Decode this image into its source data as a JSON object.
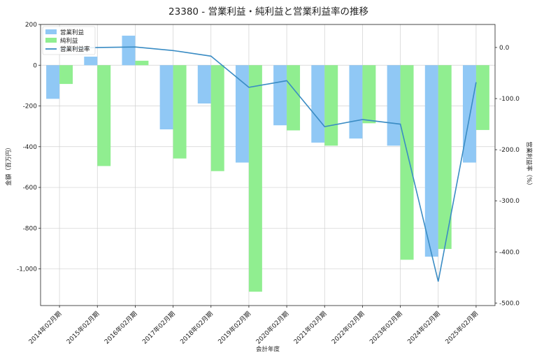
{
  "chart_data": {
    "type": "bar",
    "title": "23380 - 営業利益・純利益と営業利益率の推移",
    "xlabel": "会計年度",
    "ylabel": "金額（百万円）",
    "y2label": "営業利益率（%）",
    "categories": [
      "2014年02月期",
      "2015年02月期",
      "2016年02月期",
      "2017年02月期",
      "2018年02月期",
      "2019年02月期",
      "2020年02月期",
      "2021年02月期",
      "2022年02月期",
      "2023年02月期",
      "2024年02月期",
      "2025年02月期"
    ],
    "series": [
      {
        "name": "営業利益",
        "kind": "bar",
        "axis": "left",
        "color": "#90c8f5",
        "values": [
          -165,
          42,
          145,
          -315,
          -188,
          -478,
          -295,
          -380,
          -360,
          -395,
          -940,
          -478
        ]
      },
      {
        "name": "純利益",
        "kind": "bar",
        "axis": "left",
        "color": "#90ee90",
        "values": [
          -92,
          -495,
          22,
          -458,
          -520,
          -1112,
          -320,
          -395,
          -285,
          -955,
          -902,
          -318
        ]
      },
      {
        "name": "営業利益率",
        "kind": "line",
        "axis": "right",
        "color": "#3a8cc4",
        "values": [
          -3,
          0,
          1,
          -6,
          -17,
          -78,
          -65,
          -155,
          -141,
          -150,
          -458,
          -68
        ]
      }
    ],
    "ylim": [
      -1180,
      200
    ],
    "y2lim": [
      -505,
      45
    ],
    "yticks": [
      200,
      0,
      -200,
      -400,
      -600,
      -800,
      -1000
    ],
    "ytick_labels": [
      "200",
      "0",
      "-200",
      "-400",
      "-600",
      "-800",
      "-1,000"
    ],
    "y2ticks": [
      0,
      -100,
      -200,
      -300,
      -400,
      -500
    ],
    "y2tick_labels": [
      "0.0",
      "-100.0",
      "-200.0",
      "-300.0",
      "-400.0",
      "-500.0"
    ],
    "grid": true,
    "legend": "top-left"
  }
}
